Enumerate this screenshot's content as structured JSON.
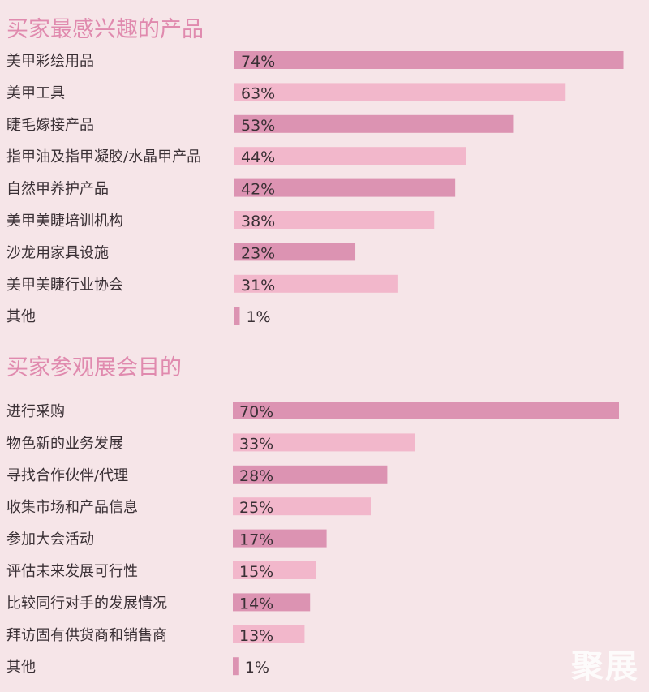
{
  "colors": {
    "background": "#f6e5e8",
    "title": "#e08aae",
    "bar_dark": "#dc93b2",
    "bar_light": "#f2b7cb",
    "text": "#3a3035"
  },
  "watermark": "聚展",
  "chart_data": [
    {
      "type": "bar",
      "orientation": "horizontal",
      "title": "买家最感兴趣的产品",
      "categories": [
        "美甲彩绘用品",
        "美甲工具",
        "睫毛嫁接产品",
        "指甲油及指甲凝胶/水晶甲产品",
        "自然甲养护产品",
        "美甲美睫培训机构",
        "沙龙用家具设施",
        "美甲美睫行业协会",
        "其他"
      ],
      "values": [
        74,
        63,
        53,
        44,
        42,
        38,
        23,
        31,
        1
      ],
      "value_labels": [
        "74%",
        "63%",
        "53%",
        "44%",
        "42%",
        "38%",
        "23%",
        "31%",
        "1%"
      ],
      "unit": "%",
      "xlim": [
        0,
        100
      ]
    },
    {
      "type": "bar",
      "orientation": "horizontal",
      "title": "买家参观展会目的",
      "categories": [
        "进行采购",
        "物色新的业务发展",
        "寻找合作伙伴/代理",
        "收集市场和产品信息",
        "参加大会活动",
        "评估未来发展可行性",
        "比较同行对手的发展情况",
        "拜访固有供货商和销售商",
        "其他"
      ],
      "values": [
        70,
        33,
        28,
        25,
        17,
        15,
        14,
        13,
        1
      ],
      "value_labels": [
        "70%",
        "33%",
        "28%",
        "25%",
        "17%",
        "15%",
        "14%",
        "13%",
        "1%"
      ],
      "unit": "%",
      "xlim": [
        0,
        100
      ]
    }
  ]
}
